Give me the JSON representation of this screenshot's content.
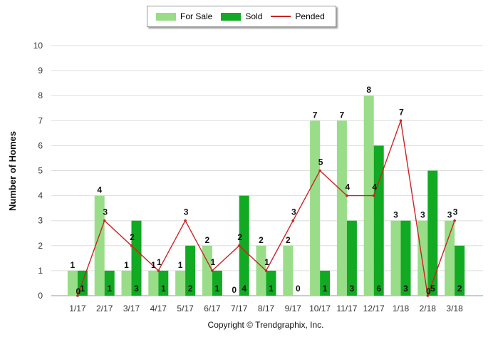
{
  "chart_data": {
    "type": "bar",
    "xlabel": "",
    "ylabel": "Number of Homes",
    "ylim": [
      0,
      10
    ],
    "yticks": [
      0,
      1,
      2,
      3,
      4,
      5,
      6,
      7,
      8,
      9,
      10
    ],
    "categories": [
      "1/17",
      "2/17",
      "3/17",
      "4/17",
      "5/17",
      "6/17",
      "7/17",
      "8/17",
      "9/17",
      "10/17",
      "11/17",
      "12/17",
      "1/18",
      "2/18",
      "3/18"
    ],
    "series": [
      {
        "name": "For Sale",
        "kind": "bar",
        "color": "#99dd88",
        "values": [
          1,
          4,
          1,
          1,
          1,
          2,
          0,
          2,
          2,
          7,
          7,
          8,
          3,
          3,
          3
        ]
      },
      {
        "name": "Sold",
        "kind": "bar",
        "color": "#11aa22",
        "values": [
          1,
          1,
          3,
          1,
          2,
          1,
          4,
          1,
          0,
          1,
          3,
          6,
          3,
          5,
          2
        ]
      },
      {
        "name": "Pended",
        "kind": "line",
        "color": "#cc2222",
        "values": [
          0,
          3,
          2,
          1,
          3,
          1,
          2,
          1,
          3,
          5,
          4,
          4,
          7,
          0,
          3
        ]
      }
    ],
    "grid": true,
    "legend": "top-center"
  },
  "footer": {
    "copyright": "Copyright © Trendgraphix, Inc."
  }
}
